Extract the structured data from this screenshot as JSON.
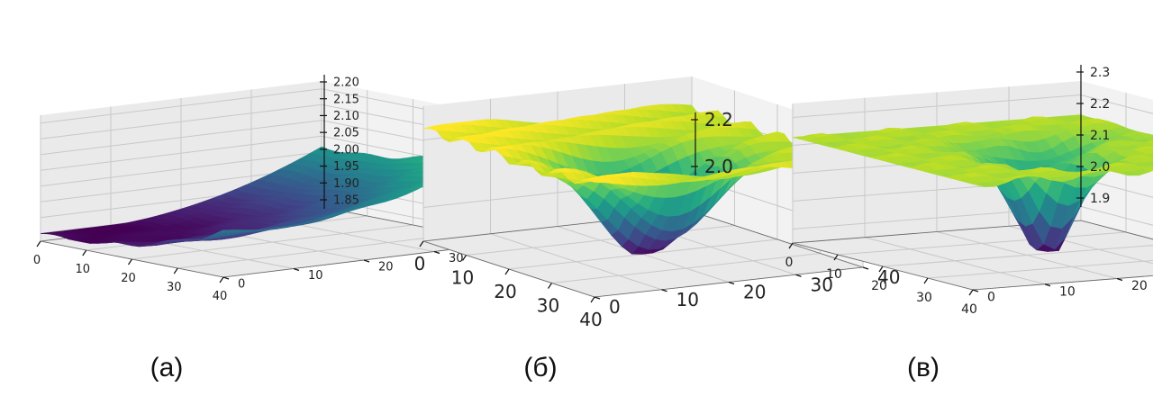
{
  "colormap": "viridis",
  "chart_data": [
    {
      "type": "surface3d",
      "caption": "(а)",
      "x_ticks": [
        "0",
        "10",
        "20",
        "30",
        "40"
      ],
      "y_ticks": [
        "0",
        "10",
        "20",
        "30",
        "40"
      ],
      "z_ticks": [
        "1.85",
        "1.90",
        "1.95",
        "2.00",
        "2.05",
        "2.10",
        "2.15",
        "2.20"
      ],
      "xlim": [
        0,
        40
      ],
      "ylim": [
        0,
        40
      ],
      "zlim": [
        1.83,
        2.22
      ],
      "shape": "bowl",
      "z_min": 1.85,
      "z_max": 2.16,
      "grid": true
    },
    {
      "type": "surface3d",
      "caption": "(б)",
      "x_ticks": [
        "0",
        "10",
        "20",
        "30",
        "40"
      ],
      "y_ticks": [
        "0",
        "10",
        "20",
        "30",
        "40"
      ],
      "z_ticks": [
        "2.0",
        "2.2"
      ],
      "xlim": [
        0,
        40
      ],
      "ylim": [
        0,
        40
      ],
      "zlim": [
        1.85,
        2.35
      ],
      "shape": "plateau-with-deep-well",
      "z_min": 1.87,
      "z_max": 2.3,
      "grid": true
    },
    {
      "type": "surface3d",
      "caption": "(в)",
      "x_ticks": [
        "0",
        "10",
        "20",
        "30",
        "40"
      ],
      "y_ticks": [
        "0",
        "10",
        "20",
        "30",
        "40"
      ],
      "z_ticks": [
        "1.9",
        "2.0",
        "2.1",
        "2.2",
        "2.3"
      ],
      "xlim": [
        0,
        40
      ],
      "ylim": [
        0,
        40
      ],
      "zlim": [
        1.85,
        2.35
      ],
      "shape": "plateau-with-narrow-well",
      "z_min": 1.88,
      "z_max": 2.32,
      "grid": true
    }
  ]
}
